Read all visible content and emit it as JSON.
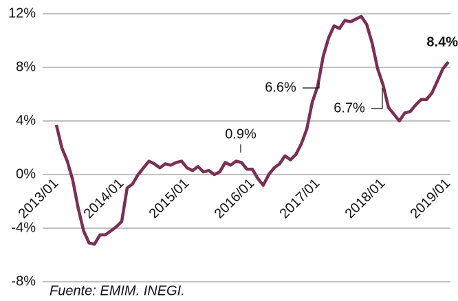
{
  "chart_data": {
    "type": "line",
    "categories": [
      "2013/01",
      null,
      null,
      null,
      null,
      null,
      null,
      null,
      null,
      null,
      null,
      null,
      "2014/01",
      null,
      null,
      null,
      null,
      null,
      null,
      null,
      null,
      null,
      null,
      null,
      "2015/01",
      null,
      null,
      null,
      null,
      null,
      null,
      null,
      null,
      null,
      null,
      null,
      "2016/01",
      null,
      null,
      null,
      null,
      null,
      null,
      null,
      null,
      null,
      null,
      null,
      "2017/01",
      null,
      null,
      null,
      null,
      null,
      null,
      null,
      null,
      null,
      null,
      null,
      "2018/01",
      null,
      null,
      null,
      null,
      null,
      null,
      null,
      null,
      null,
      null,
      null,
      "2019/01"
    ],
    "series": [
      {
        "name": null,
        "color": "#7a2f55",
        "values": [
          3.7,
          2.0,
          1.0,
          -0.4,
          -2.5,
          -4.2,
          -5.1,
          -5.2,
          -4.5,
          -4.5,
          -4.2,
          -3.9,
          -3.5,
          -1.0,
          -0.7,
          0.0,
          0.5,
          1.0,
          0.8,
          0.5,
          0.8,
          0.7,
          0.9,
          1.0,
          0.5,
          0.3,
          0.6,
          0.2,
          0.3,
          0.0,
          0.2,
          0.9,
          0.7,
          1.0,
          0.9,
          0.4,
          0.4,
          -0.3,
          -0.8,
          0.0,
          0.5,
          0.8,
          1.4,
          1.1,
          1.5,
          2.3,
          3.4,
          5.4,
          6.6,
          8.8,
          10.2,
          11.1,
          10.9,
          11.5,
          11.4,
          11.6,
          11.8,
          11.2,
          9.8,
          7.9,
          6.7,
          5.0,
          4.5,
          4.0,
          4.6,
          4.7,
          5.2,
          5.6,
          5.6,
          6.1,
          7.0,
          7.9,
          8.4
        ]
      }
    ],
    "ylim": [
      -8,
      12
    ],
    "yticks": [
      {
        "value": -8,
        "label": "-8%"
      },
      {
        "value": -4,
        "label": "-4%"
      },
      {
        "value": 0,
        "label": "0%"
      },
      {
        "value": 4,
        "label": "4%"
      },
      {
        "value": 8,
        "label": "8%"
      },
      {
        "value": 12,
        "label": "12%"
      }
    ],
    "grid": true,
    "annotations": [
      "8.4%",
      "6.6%",
      "6.7%",
      "0.9%"
    ],
    "source": "Fuente: EMIM. INEGI."
  }
}
